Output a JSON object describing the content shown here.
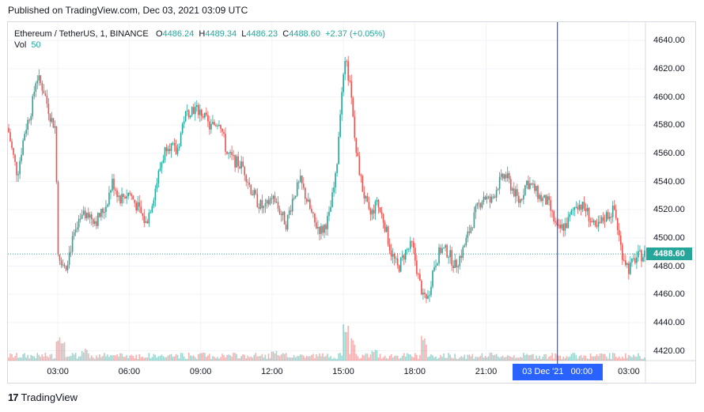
{
  "header": {
    "published": "Published on TradingView.com, Dec 03, 2021 03:09 UTC"
  },
  "legend": {
    "symbol": "Ethereum / TetherUS, 1, BINANCE",
    "o_label": "O",
    "o_value": "4486.24",
    "h_label": "H",
    "h_value": "4489.34",
    "l_label": "L",
    "l_value": "4486.23",
    "c_label": "C",
    "c_value": "4488.60",
    "change": "+2.37 (+0.05%)",
    "vol_label": "Vol",
    "vol_value": "50"
  },
  "price_label": "4488.60",
  "crosshair_label": "03 Dec '21   00:00",
  "footer": {
    "logo_mark": "17",
    "logo_text": "TradingView"
  },
  "colors": {
    "up": "#26a69a",
    "down": "#ef5350",
    "crosshair": "#2a3a6b",
    "grid": "#f0f3fa",
    "accent": "#2962ff"
  },
  "chart_data": {
    "type": "candlestick",
    "ylim": [
      4413,
      4653
    ],
    "yticks": [
      "4640.00",
      "4620.00",
      "4600.00",
      "4580.00",
      "4560.00",
      "4540.00",
      "4520.00",
      "4500.00",
      "4480.00",
      "4460.00",
      "4440.00",
      "4420.00"
    ],
    "ytick_values": [
      4640,
      4620,
      4600,
      4580,
      4560,
      4540,
      4520,
      4500,
      4480,
      4460,
      4440,
      4420
    ],
    "xticks": [
      "03:00",
      "06:00",
      "09:00",
      "12:00",
      "15:00",
      "18:00",
      "21:00",
      "03:00"
    ],
    "xtick_hours": [
      3,
      6,
      9,
      12,
      15,
      18,
      21,
      27
    ],
    "x_start_hour": 0.9,
    "x_end_hour": 27.7,
    "last_close": 4488.6,
    "crosshair_hour": 24,
    "price_path": [
      [
        0.9,
        4578
      ],
      [
        1.1,
        4560
      ],
      [
        1.3,
        4545
      ],
      [
        1.6,
        4575
      ],
      [
        1.9,
        4592
      ],
      [
        2.1,
        4615
      ],
      [
        2.4,
        4605
      ],
      [
        2.7,
        4585
      ],
      [
        2.9,
        4578
      ],
      [
        3.0,
        4490
      ],
      [
        3.3,
        4478
      ],
      [
        3.6,
        4497
      ],
      [
        3.9,
        4510
      ],
      [
        4.2,
        4518
      ],
      [
        4.6,
        4512
      ],
      [
        5.0,
        4522
      ],
      [
        5.3,
        4540
      ],
      [
        5.6,
        4528
      ],
      [
        6.0,
        4532
      ],
      [
        6.4,
        4520
      ],
      [
        6.7,
        4510
      ],
      [
        7.0,
        4528
      ],
      [
        7.3,
        4550
      ],
      [
        7.6,
        4568
      ],
      [
        8.0,
        4560
      ],
      [
        8.3,
        4585
      ],
      [
        8.6,
        4592
      ],
      [
        9.0,
        4590
      ],
      [
        9.4,
        4578
      ],
      [
        9.8,
        4584
      ],
      [
        10.1,
        4560
      ],
      [
        10.4,
        4555
      ],
      [
        10.8,
        4550
      ],
      [
        11.1,
        4535
      ],
      [
        11.4,
        4525
      ],
      [
        11.7,
        4520
      ],
      [
        12.0,
        4530
      ],
      [
        12.3,
        4520
      ],
      [
        12.6,
        4510
      ],
      [
        12.9,
        4530
      ],
      [
        13.2,
        4540
      ],
      [
        13.5,
        4525
      ],
      [
        13.8,
        4510
      ],
      [
        14.1,
        4505
      ],
      [
        14.4,
        4515
      ],
      [
        14.7,
        4545
      ],
      [
        14.9,
        4600
      ],
      [
        15.1,
        4625
      ],
      [
        15.3,
        4605
      ],
      [
        15.5,
        4565
      ],
      [
        15.8,
        4535
      ],
      [
        16.1,
        4515
      ],
      [
        16.4,
        4525
      ],
      [
        16.7,
        4512
      ],
      [
        17.0,
        4490
      ],
      [
        17.3,
        4478
      ],
      [
        17.6,
        4490
      ],
      [
        17.9,
        4495
      ],
      [
        18.2,
        4468
      ],
      [
        18.5,
        4452
      ],
      [
        18.8,
        4480
      ],
      [
        19.1,
        4492
      ],
      [
        19.4,
        4490
      ],
      [
        19.7,
        4480
      ],
      [
        20.0,
        4490
      ],
      [
        20.3,
        4505
      ],
      [
        20.6,
        4520
      ],
      [
        20.9,
        4530
      ],
      [
        21.2,
        4525
      ],
      [
        21.5,
        4538
      ],
      [
        21.8,
        4545
      ],
      [
        22.1,
        4535
      ],
      [
        22.4,
        4525
      ],
      [
        22.7,
        4540
      ],
      [
        23.0,
        4535
      ],
      [
        23.3,
        4528
      ],
      [
        23.6,
        4525
      ],
      [
        24.0,
        4505
      ],
      [
        24.4,
        4510
      ],
      [
        24.8,
        4525
      ],
      [
        25.2,
        4520
      ],
      [
        25.6,
        4505
      ],
      [
        26.0,
        4515
      ],
      [
        26.4,
        4520
      ],
      [
        26.7,
        4490
      ],
      [
        27.0,
        4478
      ],
      [
        27.3,
        4486
      ],
      [
        27.7,
        4488.6
      ]
    ],
    "volume_spikes": [
      [
        3.0,
        0.55
      ],
      [
        3.2,
        0.35
      ],
      [
        4.1,
        0.22
      ],
      [
        15.1,
        0.85
      ],
      [
        15.4,
        0.45
      ],
      [
        18.4,
        0.45
      ],
      [
        16.3,
        0.2
      ],
      [
        9.1,
        0.15
      ],
      [
        12.1,
        0.18
      ]
    ]
  }
}
